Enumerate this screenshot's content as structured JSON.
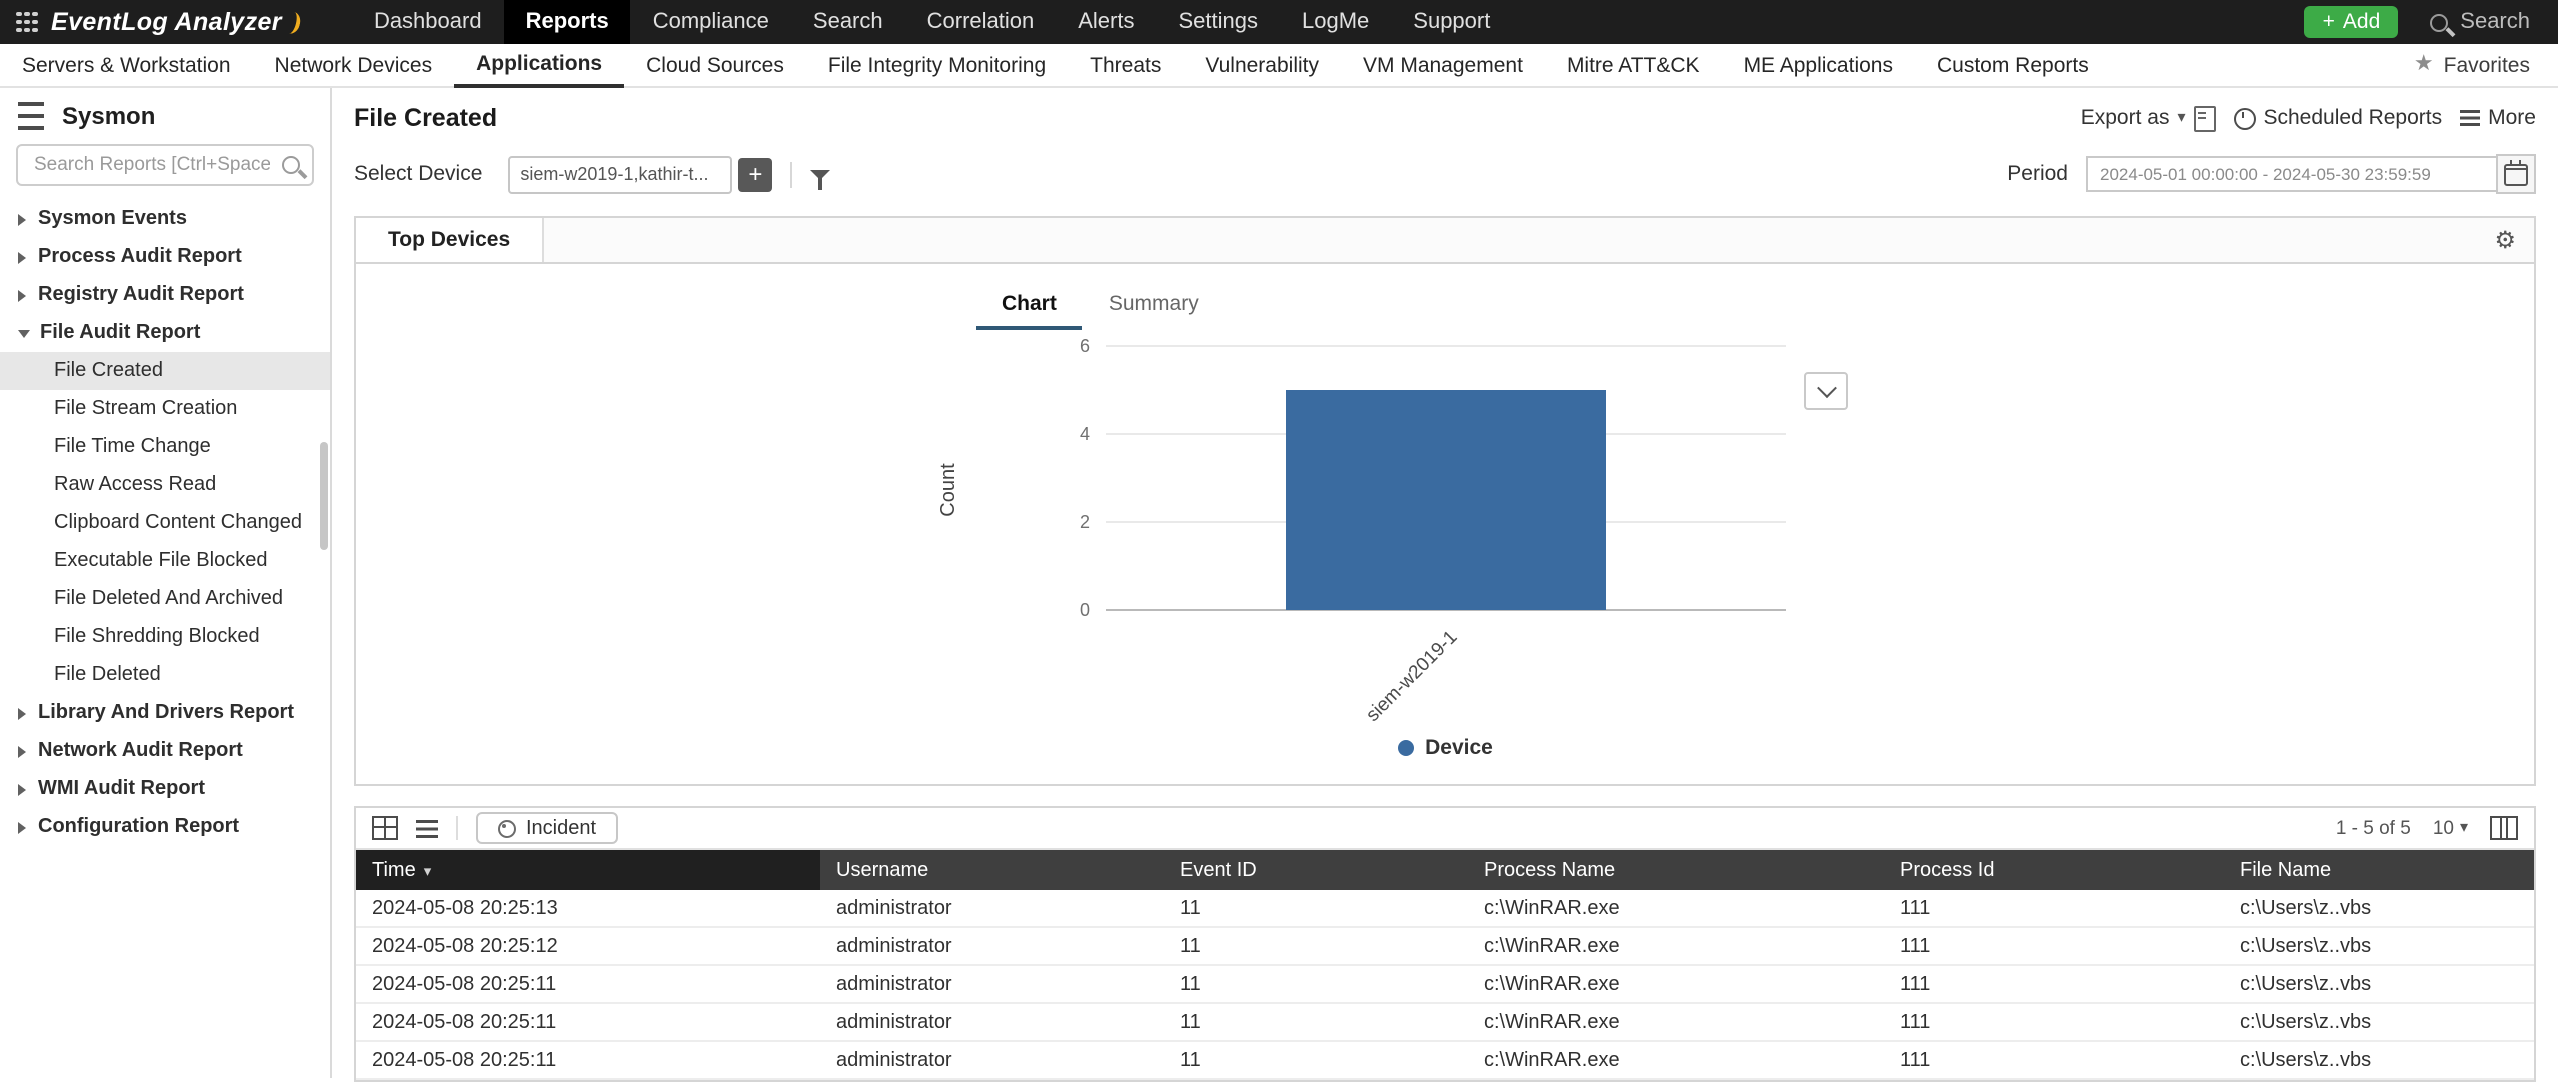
{
  "icons": {
    "caret_down": "▾",
    "star": "★",
    "gear": "⚙",
    "plus": "+"
  },
  "topbar": {
    "logo": "EventLog Analyzer",
    "nav": [
      "Dashboard",
      "Reports",
      "Compliance",
      "Search",
      "Correlation",
      "Alerts",
      "Settings",
      "LogMe",
      "Support"
    ],
    "active_nav": "Reports",
    "add_label": "Add",
    "search_label": "Search"
  },
  "subnav": {
    "items": [
      "Servers & Workstation",
      "Network Devices",
      "Applications",
      "Cloud Sources",
      "File Integrity Monitoring",
      "Threats",
      "Vulnerability",
      "VM Management",
      "Mitre ATT&CK",
      "ME Applications",
      "Custom Reports"
    ],
    "active": "Applications",
    "favorites_label": "Favorites"
  },
  "sidebar": {
    "title": "Sysmon",
    "search_placeholder": "Search Reports [Ctrl+Space]",
    "items": [
      {
        "label": "Sysmon Events"
      },
      {
        "label": "Process Audit Report"
      },
      {
        "label": "Registry Audit Report"
      },
      {
        "label": "File Audit Report"
      },
      {
        "label": "File Created"
      },
      {
        "label": "File Stream Creation"
      },
      {
        "label": "File Time Change"
      },
      {
        "label": "Raw Access Read"
      },
      {
        "label": "Clipboard Content Changed"
      },
      {
        "label": "Executable File Blocked"
      },
      {
        "label": "File Deleted And Archived"
      },
      {
        "label": "File Shredding Blocked"
      },
      {
        "label": "File Deleted"
      },
      {
        "label": "Library And Drivers Report"
      },
      {
        "label": "Network Audit Report"
      },
      {
        "label": "WMI Audit Report"
      },
      {
        "label": "Configuration Report"
      }
    ],
    "selected": "File Created"
  },
  "main": {
    "title": "File Created",
    "actions": {
      "export_label": "Export as",
      "scheduled_label": "Scheduled Reports",
      "more_label": "More"
    },
    "controls": {
      "select_device_label": "Select Device",
      "device_value": "siem-w2019-1,kathir-t...",
      "period_label": "Period",
      "period_value": "2024-05-01 00:00:00 - 2024-05-30 23:59:59"
    },
    "panel": {
      "tab": "Top Devices"
    },
    "toolbar": {
      "incident_label": "Incident",
      "range": "1 - 5 of 5",
      "page_size": "10"
    },
    "table": {
      "columns": [
        "Time",
        "Username",
        "Event ID",
        "Process Name",
        "Process Id",
        "File Name"
      ],
      "sorted_column": "Time",
      "rows": [
        [
          "2024-05-08 20:25:13",
          "administrator",
          "11",
          "c:\\WinRAR.exe",
          "111",
          "c:\\Users\\z..vbs"
        ],
        [
          "2024-05-08 20:25:12",
          "administrator",
          "11",
          "c:\\WinRAR.exe",
          "111",
          "c:\\Users\\z..vbs"
        ],
        [
          "2024-05-08 20:25:11",
          "administrator",
          "11",
          "c:\\WinRAR.exe",
          "111",
          "c:\\Users\\z..vbs"
        ],
        [
          "2024-05-08 20:25:11",
          "administrator",
          "11",
          "c:\\WinRAR.exe",
          "111",
          "c:\\Users\\z..vbs"
        ],
        [
          "2024-05-08 20:25:11",
          "administrator",
          "11",
          "c:\\WinRAR.exe",
          "111",
          "c:\\Users\\z..vbs"
        ]
      ]
    }
  },
  "chart_data": {
    "type": "bar",
    "categories": [
      "siem-w2019-1"
    ],
    "values": [
      5
    ],
    "series_label": "Device",
    "title": "",
    "xlabel": "",
    "ylabel": "Count",
    "ylim": [
      0,
      6
    ],
    "yticks": [
      0,
      2,
      4,
      6
    ],
    "grid": true,
    "legend_position": "bottom",
    "bar_color": "#3a6ba0",
    "tabs": [
      "Chart",
      "Summary"
    ],
    "active_tab": "Chart"
  }
}
